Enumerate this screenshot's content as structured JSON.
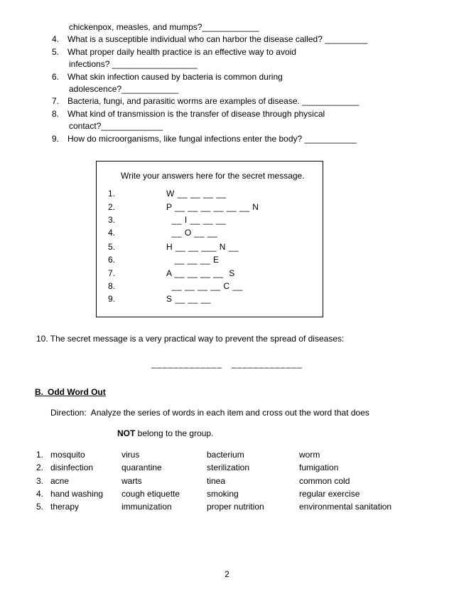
{
  "questions": {
    "q3_cont": "chickenpox, measles, and mumps?____________",
    "q4": "4. What is a susceptible individual who can harbor the disease called? _________",
    "q5": "5. What proper daily health practice is an effective way to avoid",
    "q5b": "infections? __________________",
    "q6": "6. What skin infection caused by bacteria is common during",
    "q6b": "adolescence?____________",
    "q7": "7. Bacteria, fungi, and parasitic worms are examples of disease. ____________",
    "q8": "8. What kind of transmission is the transfer of disease through physical",
    "q8b": "contact?_____________",
    "q9": "9. How do microorganisms, like fungal infections enter the body? ___________"
  },
  "box": {
    "msg": "Write your answers here for the secret message.",
    "rows": [
      {
        "n": "1.",
        "p": "W __ __ __ __"
      },
      {
        "n": "2.",
        "p": "P __ __ __ __ __ __ N"
      },
      {
        "n": "3.",
        "p": "  __ I __ __ __"
      },
      {
        "n": "4.",
        "p": "  __ O __ __"
      },
      {
        "n": "",
        "p": ""
      },
      {
        "n": "5.",
        "p": "H __ __ ___ N __"
      },
      {
        "n": "6.",
        "p": "   __ __ __ E"
      },
      {
        "n": "7.",
        "p": "A __ __ __ __  S"
      },
      {
        "n": "8.",
        "p": "  __ __ __ __ C __"
      },
      {
        "n": "9.",
        "p": "S __ __ __"
      }
    ]
  },
  "q10": "10. The secret message is a very practical way to prevent the spread of diseases:",
  "blanks_line": "_____________ _____________",
  "section_b": {
    "head": "B. Odd Word Out",
    "dir": "Direction: Analyze the series of words in each item and cross out the word that does",
    "not_line": "NOT",
    "not_rest": " belong to the group.",
    "rows": [
      {
        "n": "1.",
        "c1": "mosquito",
        "c2": "virus",
        "c3": "bacterium",
        "c4": "worm"
      },
      {
        "n": "2.",
        "c1": "disinfection",
        "c2": "quarantine",
        "c3": "sterilization",
        "c4": "fumigation"
      },
      {
        "n": "3.",
        "c1": "acne",
        "c2": "warts",
        "c3": "tinea",
        "c4": "common cold"
      },
      {
        "n": "4.",
        "c1": "hand washing",
        "c2": "cough etiquette",
        "c3": "smoking",
        "c4": "regular exercise"
      },
      {
        "n": "5.",
        "c1": "therapy",
        "c2": "immunization",
        "c3": "proper nutrition",
        "c4": "environmental sanitation"
      }
    ]
  },
  "page_num": "2"
}
